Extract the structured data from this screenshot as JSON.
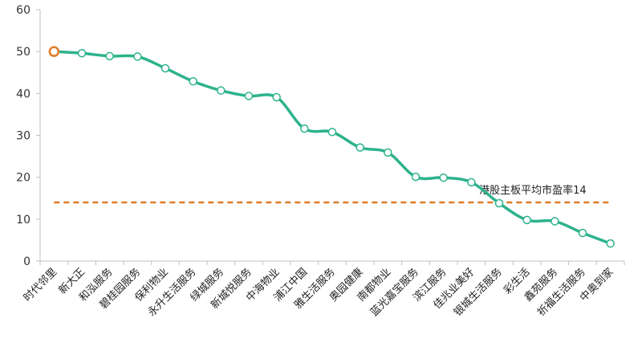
{
  "chart_data": {
    "type": "line",
    "categories": [
      "时代邻里",
      "新大正",
      "和泓服务",
      "碧桂园服务",
      "保利物业",
      "永升生活服务",
      "绿城服务",
      "新城悦服务",
      "中海物业",
      "浦江中国",
      "雅生活服务",
      "奥园健康",
      "南都物业",
      "蓝光嘉宝服务",
      "滨江服务",
      "佳兆业美好",
      "银城生活服务",
      "彩生活",
      "鑫苑服务",
      "祈福生活服务",
      "中奥到家"
    ],
    "values": [
      50,
      49.6,
      48.9,
      48.8,
      46,
      42.9,
      40.7,
      39.4,
      39.1,
      31.6,
      30.8,
      27.1,
      25.9,
      20.1,
      19.9,
      18.8,
      13.8,
      9.8,
      9.5,
      6.7,
      4.2
    ],
    "ylim": [
      0,
      60
    ],
    "yticks": [
      0,
      10,
      20,
      30,
      40,
      50,
      60
    ],
    "highlight_index": 0,
    "reference_line": {
      "value": 14,
      "label": "港股主板平均市盈率14"
    },
    "colors": {
      "line": "#2db38c",
      "reference": "#e07b26",
      "highlight": "#e07b26",
      "axis": "#bfbfbf"
    }
  }
}
